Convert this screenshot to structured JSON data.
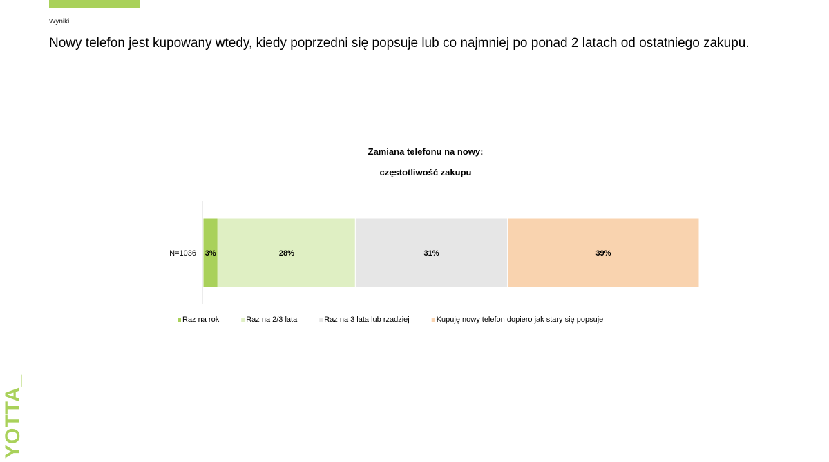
{
  "slide": {
    "section_label": "Wyniki",
    "headline": "Nowy telefon jest kupowany wtedy, kiedy poprzedni się popsuje lub co najmniej po ponad 2 latach od ostatniego zakupu.",
    "brand": "YOTTA_",
    "accent_color": "#a9d15a"
  },
  "chart_data": {
    "type": "bar",
    "orientation": "horizontal",
    "stacked": true,
    "title": "Zamiana telefonu na nowy:",
    "subtitle": "częstotliwość zakupu",
    "categories": [
      "N=1036"
    ],
    "series": [
      {
        "name": "Raz na rok",
        "values": [
          3
        ],
        "label": "3%",
        "color": "#a9d15a"
      },
      {
        "name": "Raz na 2/3 lata",
        "values": [
          28
        ],
        "label": "28%",
        "color": "#dfefc3"
      },
      {
        "name": "Raz na 3 lata lub rzadziej",
        "values": [
          31
        ],
        "label": "31%",
        "color": "#e6e6e6"
      },
      {
        "name": "Kupuję nowy telefon dopiero jak stary się popsuje",
        "values": [
          39
        ],
        "label": "39%",
        "color": "#f9d3af"
      }
    ],
    "xlim": [
      0,
      101
    ],
    "legend_position": "bottom",
    "grid": false
  }
}
